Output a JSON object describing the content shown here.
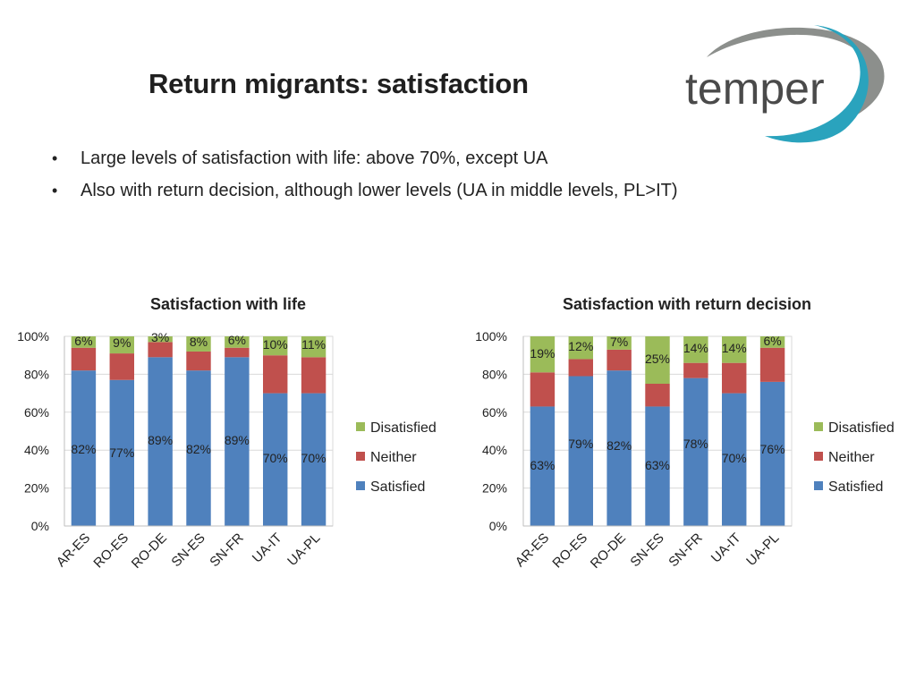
{
  "header": {
    "title": "Return migrants: satisfaction"
  },
  "logo": {
    "text": "temper",
    "text_color": "#4a4a4a",
    "swoosh_gray": "#8c8f8c",
    "swoosh_teal": "#2aa3bd"
  },
  "bullets": [
    "Large levels of satisfaction with life: above 70%, except UA",
    "Also with return decision, although lower levels (UA in middle levels, PL>IT)"
  ],
  "colors": {
    "satisfied": "#4f81bd",
    "neither": "#c0504d",
    "dissatisfied": "#9bbb59"
  },
  "chart_data": [
    {
      "type": "bar",
      "stacked": true,
      "title": "Satisfaction with life",
      "categories": [
        "AR-ES",
        "RO-ES",
        "RO-DE",
        "SN-ES",
        "SN-FR",
        "UA-IT",
        "UA-PL"
      ],
      "series": [
        {
          "name": "Satisfied",
          "values": [
            82,
            77,
            89,
            82,
            89,
            70,
            70
          ],
          "labels": [
            "82%",
            "77%",
            "89%",
            "82%",
            "89%",
            "70%",
            "70%"
          ]
        },
        {
          "name": "Neither",
          "values": [
            12,
            14,
            8,
            10,
            5,
            20,
            19
          ]
        },
        {
          "name": "Disatisfied",
          "values": [
            6,
            9,
            3,
            8,
            6,
            10,
            11
          ],
          "labels": [
            "6%",
            "9%",
            "3%",
            "8%",
            "6%",
            "10%",
            "11%"
          ]
        }
      ],
      "legend": [
        "Disatisfied",
        "Neither",
        "Satisfied"
      ],
      "ytick_labels": [
        "0%",
        "20%",
        "40%",
        "60%",
        "80%",
        "100%"
      ],
      "ylim": [
        0,
        100
      ]
    },
    {
      "type": "bar",
      "stacked": true,
      "title": "Satisfaction with return decision",
      "categories": [
        "AR-ES",
        "RO-ES",
        "RO-DE",
        "SN-ES",
        "SN-FR",
        "UA-IT",
        "UA-PL"
      ],
      "series": [
        {
          "name": "Satisfied",
          "values": [
            63,
            79,
            82,
            63,
            78,
            70,
            76
          ],
          "labels": [
            "63%",
            "79%",
            "82%",
            "63%",
            "78%",
            "70%",
            "76%"
          ]
        },
        {
          "name": "Neither",
          "values": [
            18,
            9,
            11,
            12,
            8,
            16,
            18
          ]
        },
        {
          "name": "Disatisfied",
          "values": [
            19,
            12,
            7,
            25,
            14,
            14,
            6
          ],
          "labels": [
            "19%",
            "12%",
            "7%",
            "25%",
            "14%",
            "14%",
            "6%"
          ]
        }
      ],
      "legend": [
        "Disatisfied",
        "Neither",
        "Satisfied"
      ],
      "ytick_labels": [
        "0%",
        "20%",
        "40%",
        "60%",
        "80%",
        "100%"
      ],
      "ylim": [
        0,
        100
      ]
    }
  ]
}
